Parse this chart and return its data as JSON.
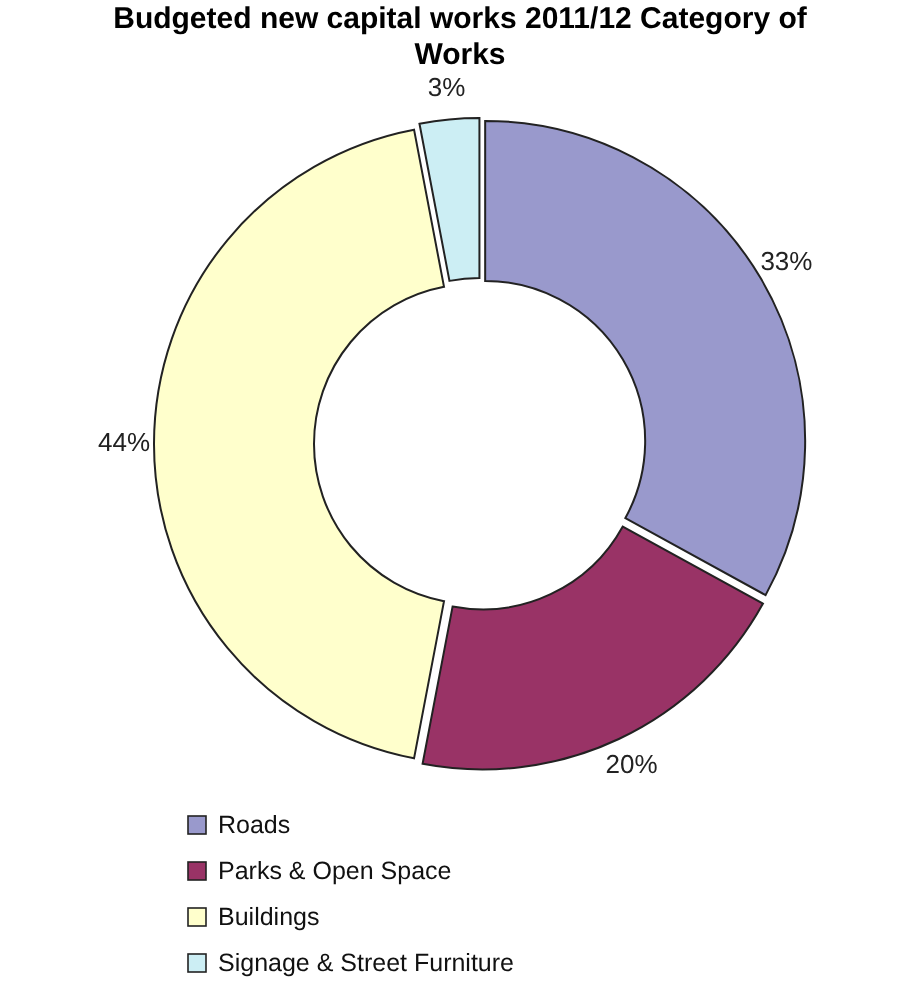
{
  "chart_data": {
    "type": "donut",
    "title": "Budgeted new capital works 2011/12 Category of Works",
    "categories": [
      "Roads",
      "Parks & Open Space",
      "Buildings",
      "Signage & Street Furniture"
    ],
    "values": [
      33,
      20,
      44,
      3
    ],
    "colors": [
      "#9999cc",
      "#993366",
      "#ffffcc",
      "#cceef4"
    ],
    "value_labels": [
      "33%",
      "20%",
      "44%",
      "3%"
    ],
    "legend": "bottom"
  }
}
